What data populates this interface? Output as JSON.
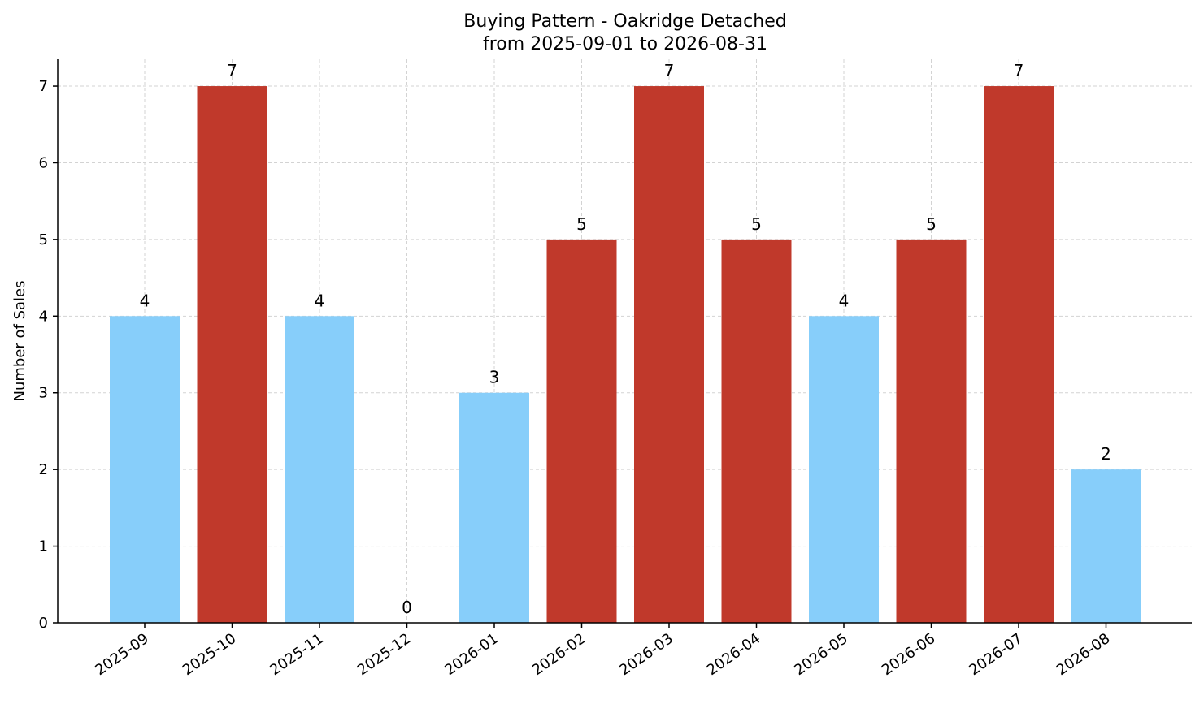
{
  "chart_data": {
    "type": "bar",
    "title": "Buying Pattern - Oakridge Detached",
    "subtitle": "from 2025-09-01 to 2026-08-31",
    "xlabel": "",
    "ylabel": "Number of Sales",
    "categories": [
      "2025-09",
      "2025-10",
      "2025-11",
      "2025-12",
      "2026-01",
      "2026-02",
      "2026-03",
      "2026-04",
      "2026-05",
      "2026-06",
      "2026-07",
      "2026-08"
    ],
    "values": [
      4,
      7,
      4,
      0,
      3,
      5,
      7,
      5,
      4,
      5,
      7,
      2
    ],
    "bar_colors": [
      "#87CEFA",
      "#C0392B",
      "#87CEFA",
      "#87CEFA",
      "#87CEFA",
      "#C0392B",
      "#C0392B",
      "#C0392B",
      "#87CEFA",
      "#C0392B",
      "#C0392B",
      "#87CEFA"
    ],
    "ylim": [
      0,
      7.35
    ],
    "yticks": [
      0,
      1,
      2,
      3,
      4,
      5,
      6,
      7
    ],
    "grid": true,
    "legend": "none"
  }
}
